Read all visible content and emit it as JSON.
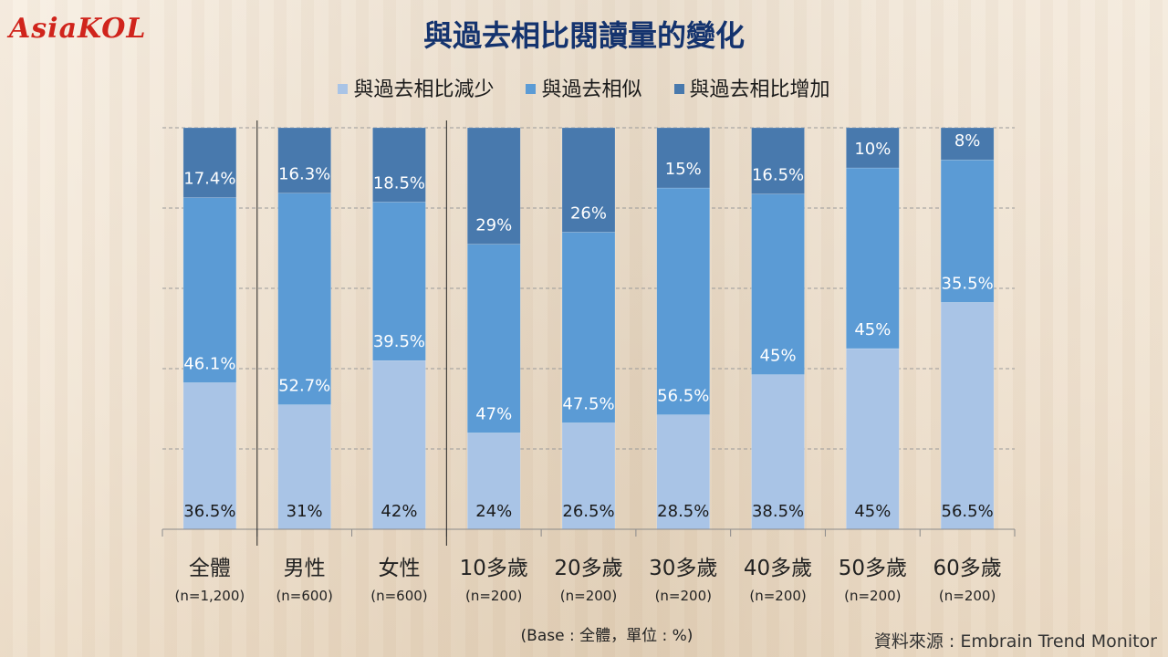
{
  "brand": {
    "logo_text": "AsiaKOL"
  },
  "colors": {
    "decrease": "#a9c4e6",
    "similar": "#5b9bd5",
    "increase": "#4879ad",
    "title": "#14336e"
  },
  "chart_data": {
    "type": "bar",
    "stacked": true,
    "title": "與過去相比閱讀量的變化",
    "categories": [
      "全體",
      "男性",
      "女性",
      "10多歲",
      "20多歲",
      "30多歲",
      "40多歲",
      "50多歲",
      "60多歲"
    ],
    "sample_sizes": [
      "(n=1,200)",
      "(n=600)",
      "(n=600)",
      "(n=200)",
      "(n=200)",
      "(n=200)",
      "(n=200)",
      "(n=200)",
      "(n=200)"
    ],
    "series": [
      {
        "name": "與過去相比減少",
        "values": [
          36.5,
          31,
          42,
          24,
          26.5,
          28.5,
          38.5,
          45,
          56.5
        ],
        "labels": [
          "36.5%",
          "31%",
          "42%",
          "24%",
          "26.5%",
          "28.5%",
          "38.5%",
          "45%",
          "56.5%"
        ]
      },
      {
        "name": "與過去相似",
        "values": [
          46.1,
          52.7,
          39.5,
          47,
          47.5,
          56.5,
          45,
          45,
          35.5
        ],
        "labels": [
          "46.1%",
          "52.7%",
          "39.5%",
          "47%",
          "47.5%",
          "56.5%",
          "45%",
          "45%",
          "35.5%"
        ]
      },
      {
        "name": "與過去相比增加",
        "values": [
          17.4,
          16.3,
          18.5,
          29,
          26,
          15,
          16.5,
          10,
          8
        ],
        "labels": [
          "17.4%",
          "16.3%",
          "18.5%",
          "29%",
          "26%",
          "15%",
          "16.5%",
          "10%",
          "8%"
        ]
      }
    ],
    "ylim": [
      0,
      100
    ],
    "grid": true,
    "legend_position": "top",
    "group_separators_after": [
      0,
      2
    ]
  },
  "notes": {
    "base": "(Base : 全體，單位 : %)",
    "source": "資料來源 : Embrain Trend Monitor"
  }
}
